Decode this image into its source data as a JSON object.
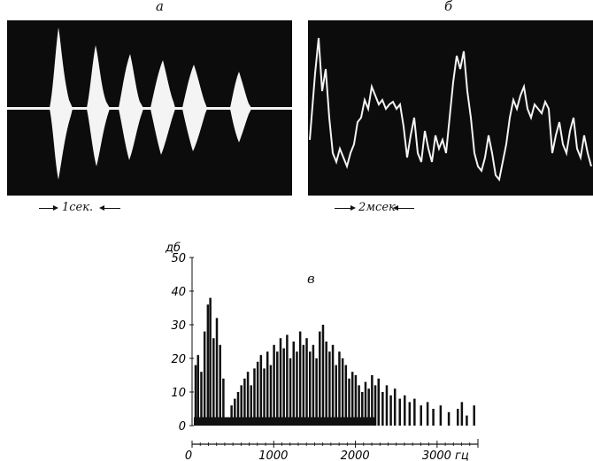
{
  "panels": {
    "a": {
      "label": "а",
      "scale_text": "1сек."
    },
    "b": {
      "label": "б",
      "scale_text": "2мсек"
    },
    "c": {
      "label": "в"
    }
  },
  "chart_data": {
    "type": "bar",
    "ylabel": "дб",
    "xlabel": "гц",
    "ylim": [
      0,
      50
    ],
    "xlim": [
      0,
      3500
    ],
    "yticks": [
      0,
      10,
      20,
      30,
      40,
      50
    ],
    "xticks": [
      0,
      1000,
      2000,
      3000
    ],
    "xtick_labels": [
      "0",
      "1000",
      "2000",
      "3000 гц"
    ],
    "bar_width_hz": 20,
    "x": [
      40,
      70,
      110,
      150,
      190,
      220,
      260,
      300,
      340,
      380,
      480,
      520,
      560,
      600,
      640,
      680,
      720,
      760,
      800,
      840,
      880,
      920,
      960,
      1000,
      1040,
      1080,
      1120,
      1160,
      1200,
      1240,
      1280,
      1320,
      1360,
      1400,
      1440,
      1480,
      1520,
      1560,
      1600,
      1640,
      1680,
      1720,
      1760,
      1800,
      1840,
      1880,
      1920,
      1960,
      2000,
      2040,
      2080,
      2120,
      2160,
      2200,
      2240,
      2280,
      2330,
      2380,
      2430,
      2480,
      2540,
      2600,
      2660,
      2720,
      2800,
      2880,
      2950,
      3040,
      3140,
      3250,
      3300,
      3360,
      3450
    ],
    "values": [
      18,
      21,
      16,
      28,
      36,
      38,
      26,
      32,
      24,
      14,
      6,
      8,
      10,
      12,
      14,
      16,
      12,
      17,
      19,
      21,
      17,
      22,
      18,
      24,
      22,
      26,
      23,
      27,
      20,
      25,
      22,
      28,
      24,
      26,
      22,
      24,
      20,
      28,
      30,
      25,
      22,
      24,
      18,
      22,
      20,
      18,
      14,
      16,
      15,
      12,
      10,
      13,
      11,
      15,
      12,
      14,
      10,
      12,
      9,
      11,
      8,
      9,
      7,
      8,
      6,
      7,
      5,
      6,
      4,
      5,
      7,
      3,
      6
    ]
  }
}
